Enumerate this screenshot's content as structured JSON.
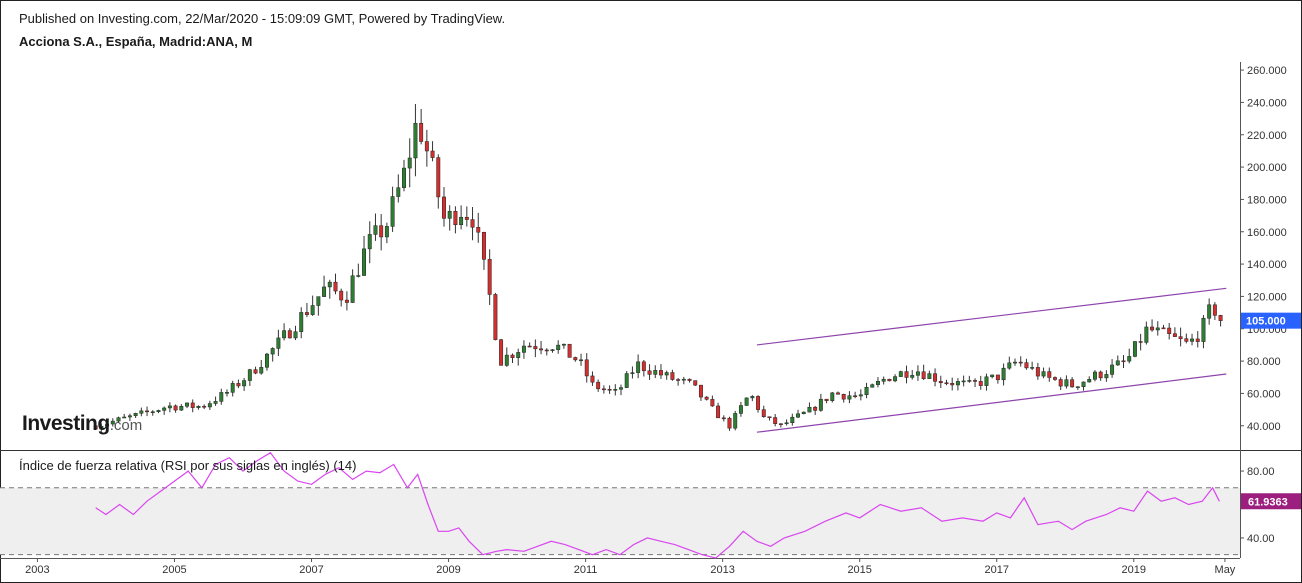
{
  "header": {
    "published": "Published on Investing.com, 22/Mar/2020 - 15:09:09 GMT, Powered by TradingView.",
    "instrument": "Acciona S.A., España, Madrid:ANA, M"
  },
  "logo": {
    "word": "Investing",
    "suffix": ".com"
  },
  "colors": {
    "up": "#26a69a",
    "up_body": "#2e7d32",
    "down": "#d32f2f",
    "wick": "#333333",
    "trend": "#8e44ad",
    "rsi_line": "#d946ef",
    "rsi_band": "#efefef",
    "price_badge": "#2962ff",
    "rsi_badge": "#9c1f7f"
  },
  "chart_data": [
    {
      "type": "candlestick",
      "interval": "monthly",
      "ylim": [
        25,
        265
      ],
      "yticks": [
        "260.000",
        "240.000",
        "220.000",
        "200.000",
        "180.000",
        "160.000",
        "140.000",
        "120.000",
        "100.000",
        "80.000",
        "60.000",
        "40.000"
      ],
      "ytick_values": [
        260,
        240,
        220,
        200,
        180,
        160,
        140,
        120,
        100,
        80,
        60,
        40
      ],
      "xlim": [
        2002.6,
        2020.55
      ],
      "xticks": [
        "2003",
        "2005",
        "2007",
        "2009",
        "2011",
        "2013",
        "2015",
        "2017",
        "2019",
        "May"
      ],
      "xtick_values": [
        2003.0,
        2005.0,
        2007.0,
        2009.0,
        2011.0,
        2013.0,
        2015.0,
        2017.0,
        2019.0,
        2020.33
      ],
      "last_price_label": "105.000",
      "last_price": 105,
      "close_path": [
        [
          2003.85,
          40
        ],
        [
          2004.5,
          47
        ],
        [
          2004.9,
          52
        ],
        [
          2005.4,
          52
        ],
        [
          2005.75,
          60
        ],
        [
          2006.1,
          72
        ],
        [
          2006.5,
          90
        ],
        [
          2006.9,
          110
        ],
        [
          2007.2,
          125
        ],
        [
          2007.5,
          120
        ],
        [
          2007.8,
          150
        ],
        [
          2008.1,
          165
        ],
        [
          2008.35,
          195
        ],
        [
          2008.55,
          230
        ],
        [
          2008.75,
          200
        ],
        [
          2008.95,
          165
        ],
        [
          2009.15,
          175
        ],
        [
          2009.35,
          170
        ],
        [
          2009.6,
          120
        ],
        [
          2009.75,
          80
        ],
        [
          2010.1,
          90
        ],
        [
          2010.55,
          90
        ],
        [
          2010.9,
          80
        ],
        [
          2011.1,
          65
        ],
        [
          2011.45,
          60
        ],
        [
          2011.75,
          78
        ],
        [
          2012.2,
          70
        ],
        [
          2012.55,
          65
        ],
        [
          2012.85,
          50
        ],
        [
          2013.1,
          40
        ],
        [
          2013.4,
          60
        ],
        [
          2013.6,
          45
        ],
        [
          2013.85,
          40
        ],
        [
          2014.3,
          50
        ],
        [
          2014.6,
          60
        ],
        [
          2015.0,
          58
        ],
        [
          2015.4,
          70
        ],
        [
          2015.8,
          75
        ],
        [
          2016.2,
          68
        ],
        [
          2016.6,
          65
        ],
        [
          2017.0,
          70
        ],
        [
          2017.3,
          80
        ],
        [
          2017.7,
          70
        ],
        [
          2018.1,
          65
        ],
        [
          2018.5,
          72
        ],
        [
          2018.9,
          80
        ],
        [
          2019.2,
          100
        ],
        [
          2019.5,
          95
        ],
        [
          2019.8,
          90
        ],
        [
          2020.0,
          100
        ],
        [
          2020.15,
          115
        ],
        [
          2020.25,
          105
        ]
      ],
      "trendlines": [
        {
          "from": [
            2013.5,
            90
          ],
          "to": [
            2020.35,
            125
          ]
        },
        {
          "from": [
            2013.5,
            36
          ],
          "to": [
            2020.35,
            72
          ]
        }
      ]
    },
    {
      "type": "line",
      "title": "Índice de fuerza relativa (RSI por sus siglas en inglés) (14)",
      "ylim": [
        28,
        92
      ],
      "yticks": [
        "80.00",
        "40.00"
      ],
      "ytick_values": [
        80,
        40
      ],
      "bands": [
        70,
        30
      ],
      "last_value_label": "61.9363",
      "values": [
        [
          2003.85,
          58
        ],
        [
          2004.0,
          54
        ],
        [
          2004.2,
          60
        ],
        [
          2004.4,
          54
        ],
        [
          2004.6,
          62
        ],
        [
          2004.8,
          68
        ],
        [
          2005.0,
          74
        ],
        [
          2005.2,
          80
        ],
        [
          2005.4,
          70
        ],
        [
          2005.6,
          84
        ],
        [
          2005.8,
          88
        ],
        [
          2006.0,
          80
        ],
        [
          2006.2,
          86
        ],
        [
          2006.4,
          91
        ],
        [
          2006.6,
          80
        ],
        [
          2006.8,
          74
        ],
        [
          2007.0,
          72
        ],
        [
          2007.2,
          78
        ],
        [
          2007.4,
          82
        ],
        [
          2007.6,
          75
        ],
        [
          2007.8,
          80
        ],
        [
          2008.0,
          79
        ],
        [
          2008.2,
          84
        ],
        [
          2008.4,
          70
        ],
        [
          2008.55,
          78
        ],
        [
          2008.7,
          60
        ],
        [
          2008.85,
          44
        ],
        [
          2009.0,
          44
        ],
        [
          2009.15,
          46
        ],
        [
          2009.3,
          38
        ],
        [
          2009.5,
          30
        ],
        [
          2009.7,
          32
        ],
        [
          2009.85,
          33
        ],
        [
          2010.1,
          32
        ],
        [
          2010.3,
          35
        ],
        [
          2010.5,
          38
        ],
        [
          2010.7,
          36
        ],
        [
          2010.9,
          33
        ],
        [
          2011.1,
          30
        ],
        [
          2011.3,
          33
        ],
        [
          2011.5,
          30
        ],
        [
          2011.7,
          36
        ],
        [
          2011.9,
          40
        ],
        [
          2012.1,
          38
        ],
        [
          2012.3,
          36
        ],
        [
          2012.5,
          33
        ],
        [
          2012.7,
          30
        ],
        [
          2012.9,
          28
        ],
        [
          2013.1,
          35
        ],
        [
          2013.3,
          44
        ],
        [
          2013.5,
          38
        ],
        [
          2013.7,
          35
        ],
        [
          2013.9,
          40
        ],
        [
          2014.2,
          44
        ],
        [
          2014.5,
          50
        ],
        [
          2014.8,
          55
        ],
        [
          2015.0,
          52
        ],
        [
          2015.3,
          60
        ],
        [
          2015.6,
          56
        ],
        [
          2015.9,
          58
        ],
        [
          2016.2,
          50
        ],
        [
          2016.5,
          52
        ],
        [
          2016.8,
          50
        ],
        [
          2017.0,
          55
        ],
        [
          2017.2,
          52
        ],
        [
          2017.4,
          64
        ],
        [
          2017.6,
          48
        ],
        [
          2017.9,
          50
        ],
        [
          2018.1,
          45
        ],
        [
          2018.3,
          50
        ],
        [
          2018.6,
          54
        ],
        [
          2018.8,
          58
        ],
        [
          2019.0,
          56
        ],
        [
          2019.2,
          68
        ],
        [
          2019.4,
          62
        ],
        [
          2019.6,
          64
        ],
        [
          2019.8,
          60
        ],
        [
          2020.0,
          62
        ],
        [
          2020.15,
          70
        ],
        [
          2020.25,
          61.94
        ]
      ]
    }
  ]
}
